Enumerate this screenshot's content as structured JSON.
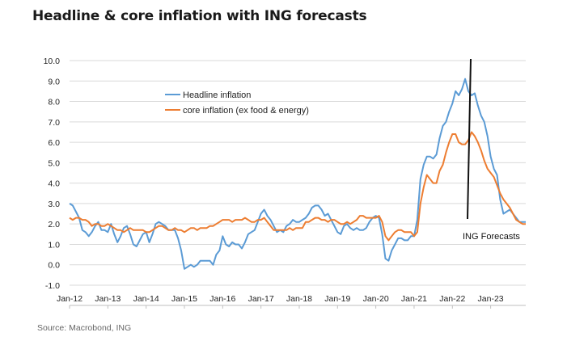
{
  "title": "Headline & core inflation with ING forecasts",
  "source": "Source: Macrobond, ING",
  "chart_data": {
    "type": "line",
    "title": "Headline & core inflation with ING forecasts",
    "xlabel": "",
    "ylabel": "",
    "ylim": [
      -1.0,
      10.0
    ],
    "yticks": [
      "10.0",
      "9.0",
      "8.0",
      "7.0",
      "6.0",
      "5.0",
      "4.0",
      "3.0",
      "2.0",
      "1.0",
      "0.0",
      "-1.0"
    ],
    "xticks": [
      "Jan-12",
      "Jan-13",
      "Jan-14",
      "Jan-15",
      "Jan-16",
      "Jan-17",
      "Jan-18",
      "Jan-19",
      "Jan-20",
      "Jan-21",
      "Jan-22",
      "Jan-23"
    ],
    "x_start_year": 2012,
    "x_end_month_index": 143,
    "grid": true,
    "forecast_marker_month_index": 127,
    "annotation": "ING Forecasts",
    "series": [
      {
        "name": "Headline inflation",
        "color": "#5b9bd5",
        "points": [
          [
            0,
            3.0
          ],
          [
            1,
            2.9
          ],
          [
            2,
            2.6
          ],
          [
            3,
            2.3
          ],
          [
            4,
            1.7
          ],
          [
            5,
            1.6
          ],
          [
            6,
            1.4
          ],
          [
            7,
            1.6
          ],
          [
            8,
            1.9
          ],
          [
            9,
            2.1
          ],
          [
            10,
            1.7
          ],
          [
            11,
            1.7
          ],
          [
            12,
            1.6
          ],
          [
            13,
            2.0
          ],
          [
            14,
            1.5
          ],
          [
            15,
            1.1
          ],
          [
            16,
            1.4
          ],
          [
            17,
            1.8
          ],
          [
            18,
            1.9
          ],
          [
            19,
            1.5
          ],
          [
            20,
            1.0
          ],
          [
            21,
            0.9
          ],
          [
            22,
            1.2
          ],
          [
            23,
            1.5
          ],
          [
            24,
            1.6
          ],
          [
            25,
            1.1
          ],
          [
            26,
            1.5
          ],
          [
            27,
            2.0
          ],
          [
            28,
            2.1
          ],
          [
            29,
            2.0
          ],
          [
            30,
            1.9
          ],
          [
            31,
            1.7
          ],
          [
            32,
            1.7
          ],
          [
            33,
            1.7
          ],
          [
            34,
            1.3
          ],
          [
            35,
            0.7
          ],
          [
            36,
            -0.2
          ],
          [
            37,
            -0.1
          ],
          [
            38,
            0.0
          ],
          [
            39,
            -0.1
          ],
          [
            40,
            0.0
          ],
          [
            41,
            0.2
          ],
          [
            42,
            0.2
          ],
          [
            43,
            0.2
          ],
          [
            44,
            0.2
          ],
          [
            45,
            0.0
          ],
          [
            46,
            0.5
          ],
          [
            47,
            0.7
          ],
          [
            48,
            1.4
          ],
          [
            49,
            1.0
          ],
          [
            50,
            0.9
          ],
          [
            51,
            1.1
          ],
          [
            52,
            1.0
          ],
          [
            53,
            1.0
          ],
          [
            54,
            0.8
          ],
          [
            55,
            1.1
          ],
          [
            56,
            1.5
          ],
          [
            57,
            1.6
          ],
          [
            58,
            1.7
          ],
          [
            59,
            2.1
          ],
          [
            60,
            2.5
          ],
          [
            61,
            2.7
          ],
          [
            62,
            2.4
          ],
          [
            63,
            2.2
          ],
          [
            64,
            1.9
          ],
          [
            65,
            1.6
          ],
          [
            66,
            1.7
          ],
          [
            67,
            1.6
          ],
          [
            68,
            1.9
          ],
          [
            69,
            2.0
          ],
          [
            70,
            2.2
          ],
          [
            71,
            2.1
          ],
          [
            72,
            2.1
          ],
          [
            73,
            2.2
          ],
          [
            74,
            2.3
          ],
          [
            75,
            2.5
          ],
          [
            76,
            2.8
          ],
          [
            77,
            2.9
          ],
          [
            78,
            2.9
          ],
          [
            79,
            2.7
          ],
          [
            80,
            2.4
          ],
          [
            81,
            2.5
          ],
          [
            82,
            2.2
          ],
          [
            83,
            1.9
          ],
          [
            84,
            1.6
          ],
          [
            85,
            1.5
          ],
          [
            86,
            1.9
          ],
          [
            87,
            2.0
          ],
          [
            88,
            1.8
          ],
          [
            89,
            1.7
          ],
          [
            90,
            1.8
          ],
          [
            91,
            1.7
          ],
          [
            92,
            1.7
          ],
          [
            93,
            1.8
          ],
          [
            94,
            2.1
          ],
          [
            95,
            2.3
          ],
          [
            96,
            2.4
          ],
          [
            97,
            2.3
          ],
          [
            98,
            1.5
          ],
          [
            99,
            0.3
          ],
          [
            100,
            0.2
          ],
          [
            101,
            0.7
          ],
          [
            102,
            1.0
          ],
          [
            103,
            1.3
          ],
          [
            104,
            1.3
          ],
          [
            105,
            1.2
          ],
          [
            106,
            1.2
          ],
          [
            107,
            1.4
          ],
          [
            108,
            1.4
          ],
          [
            109,
            2.2
          ],
          [
            110,
            4.2
          ],
          [
            111,
            4.9
          ],
          [
            112,
            5.3
          ],
          [
            113,
            5.3
          ],
          [
            114,
            5.2
          ],
          [
            115,
            5.4
          ],
          [
            116,
            6.2
          ],
          [
            117,
            6.8
          ],
          [
            118,
            7.0
          ],
          [
            119,
            7.5
          ],
          [
            120,
            7.9
          ],
          [
            121,
            8.5
          ],
          [
            122,
            8.3
          ],
          [
            123,
            8.6
          ],
          [
            124,
            9.1
          ],
          [
            125,
            8.5
          ],
          [
            126,
            8.3
          ],
          [
            127,
            8.4
          ],
          [
            128,
            7.8
          ],
          [
            129,
            7.3
          ],
          [
            130,
            7.0
          ],
          [
            131,
            6.3
          ],
          [
            132,
            5.3
          ],
          [
            133,
            4.7
          ],
          [
            134,
            4.4
          ],
          [
            135,
            3.2
          ],
          [
            136,
            2.5
          ],
          [
            137,
            2.6
          ],
          [
            138,
            2.7
          ],
          [
            139,
            2.5
          ],
          [
            140,
            2.3
          ],
          [
            141,
            2.1
          ],
          [
            142,
            2.1
          ],
          [
            143,
            2.1
          ]
        ]
      },
      {
        "name": "core inflation (ex food & energy)",
        "color": "#ed7d31",
        "points": [
          [
            0,
            2.3
          ],
          [
            1,
            2.2
          ],
          [
            2,
            2.3
          ],
          [
            3,
            2.3
          ],
          [
            4,
            2.2
          ],
          [
            5,
            2.2
          ],
          [
            6,
            2.1
          ],
          [
            7,
            1.9
          ],
          [
            8,
            2.0
          ],
          [
            9,
            2.0
          ],
          [
            10,
            1.9
          ],
          [
            11,
            1.9
          ],
          [
            12,
            2.0
          ],
          [
            13,
            1.9
          ],
          [
            14,
            1.8
          ],
          [
            15,
            1.7
          ],
          [
            16,
            1.7
          ],
          [
            17,
            1.6
          ],
          [
            18,
            1.7
          ],
          [
            19,
            1.8
          ],
          [
            20,
            1.7
          ],
          [
            21,
            1.7
          ],
          [
            22,
            1.7
          ],
          [
            23,
            1.7
          ],
          [
            24,
            1.6
          ],
          [
            25,
            1.6
          ],
          [
            26,
            1.7
          ],
          [
            27,
            1.8
          ],
          [
            28,
            1.9
          ],
          [
            29,
            1.9
          ],
          [
            30,
            1.8
          ],
          [
            31,
            1.7
          ],
          [
            32,
            1.7
          ],
          [
            33,
            1.8
          ],
          [
            34,
            1.7
          ],
          [
            35,
            1.7
          ],
          [
            36,
            1.6
          ],
          [
            37,
            1.7
          ],
          [
            38,
            1.8
          ],
          [
            39,
            1.8
          ],
          [
            40,
            1.7
          ],
          [
            41,
            1.8
          ],
          [
            42,
            1.8
          ],
          [
            43,
            1.8
          ],
          [
            44,
            1.9
          ],
          [
            45,
            1.9
          ],
          [
            46,
            2.0
          ],
          [
            47,
            2.1
          ],
          [
            48,
            2.2
          ],
          [
            49,
            2.2
          ],
          [
            50,
            2.2
          ],
          [
            51,
            2.1
          ],
          [
            52,
            2.2
          ],
          [
            53,
            2.2
          ],
          [
            54,
            2.2
          ],
          [
            55,
            2.3
          ],
          [
            56,
            2.2
          ],
          [
            57,
            2.1
          ],
          [
            58,
            2.1
          ],
          [
            59,
            2.2
          ],
          [
            60,
            2.2
          ],
          [
            61,
            2.3
          ],
          [
            62,
            2.1
          ],
          [
            63,
            1.9
          ],
          [
            64,
            1.7
          ],
          [
            65,
            1.7
          ],
          [
            66,
            1.7
          ],
          [
            67,
            1.7
          ],
          [
            68,
            1.7
          ],
          [
            69,
            1.8
          ],
          [
            70,
            1.7
          ],
          [
            71,
            1.8
          ],
          [
            72,
            1.8
          ],
          [
            73,
            1.8
          ],
          [
            74,
            2.1
          ],
          [
            75,
            2.1
          ],
          [
            76,
            2.2
          ],
          [
            77,
            2.3
          ],
          [
            78,
            2.3
          ],
          [
            79,
            2.2
          ],
          [
            80,
            2.2
          ],
          [
            81,
            2.1
          ],
          [
            82,
            2.2
          ],
          [
            83,
            2.2
          ],
          [
            84,
            2.1
          ],
          [
            85,
            2.0
          ],
          [
            86,
            2.0
          ],
          [
            87,
            2.1
          ],
          [
            88,
            2.0
          ],
          [
            89,
            2.1
          ],
          [
            90,
            2.2
          ],
          [
            91,
            2.4
          ],
          [
            92,
            2.4
          ],
          [
            93,
            2.3
          ],
          [
            94,
            2.3
          ],
          [
            95,
            2.3
          ],
          [
            96,
            2.3
          ],
          [
            97,
            2.4
          ],
          [
            98,
            2.1
          ],
          [
            99,
            1.4
          ],
          [
            100,
            1.2
          ],
          [
            101,
            1.4
          ],
          [
            102,
            1.6
          ],
          [
            103,
            1.7
          ],
          [
            104,
            1.7
          ],
          [
            105,
            1.6
          ],
          [
            106,
            1.6
          ],
          [
            107,
            1.6
          ],
          [
            108,
            1.4
          ],
          [
            109,
            1.6
          ],
          [
            110,
            3.0
          ],
          [
            111,
            3.8
          ],
          [
            112,
            4.4
          ],
          [
            113,
            4.2
          ],
          [
            114,
            4.0
          ],
          [
            115,
            4.0
          ],
          [
            116,
            4.6
          ],
          [
            117,
            4.9
          ],
          [
            118,
            5.5
          ],
          [
            119,
            6.0
          ],
          [
            120,
            6.4
          ],
          [
            121,
            6.4
          ],
          [
            122,
            6.0
          ],
          [
            123,
            5.9
          ],
          [
            124,
            5.9
          ],
          [
            125,
            6.1
          ],
          [
            126,
            6.5
          ],
          [
            127,
            6.3
          ],
          [
            128,
            6.0
          ],
          [
            129,
            5.6
          ],
          [
            130,
            5.1
          ],
          [
            131,
            4.7
          ],
          [
            132,
            4.5
          ],
          [
            133,
            4.3
          ],
          [
            134,
            3.9
          ],
          [
            135,
            3.5
          ],
          [
            136,
            3.2
          ],
          [
            137,
            3.0
          ],
          [
            138,
            2.8
          ],
          [
            139,
            2.5
          ],
          [
            140,
            2.2
          ],
          [
            141,
            2.1
          ],
          [
            142,
            2.0
          ],
          [
            143,
            2.0
          ]
        ]
      }
    ]
  }
}
